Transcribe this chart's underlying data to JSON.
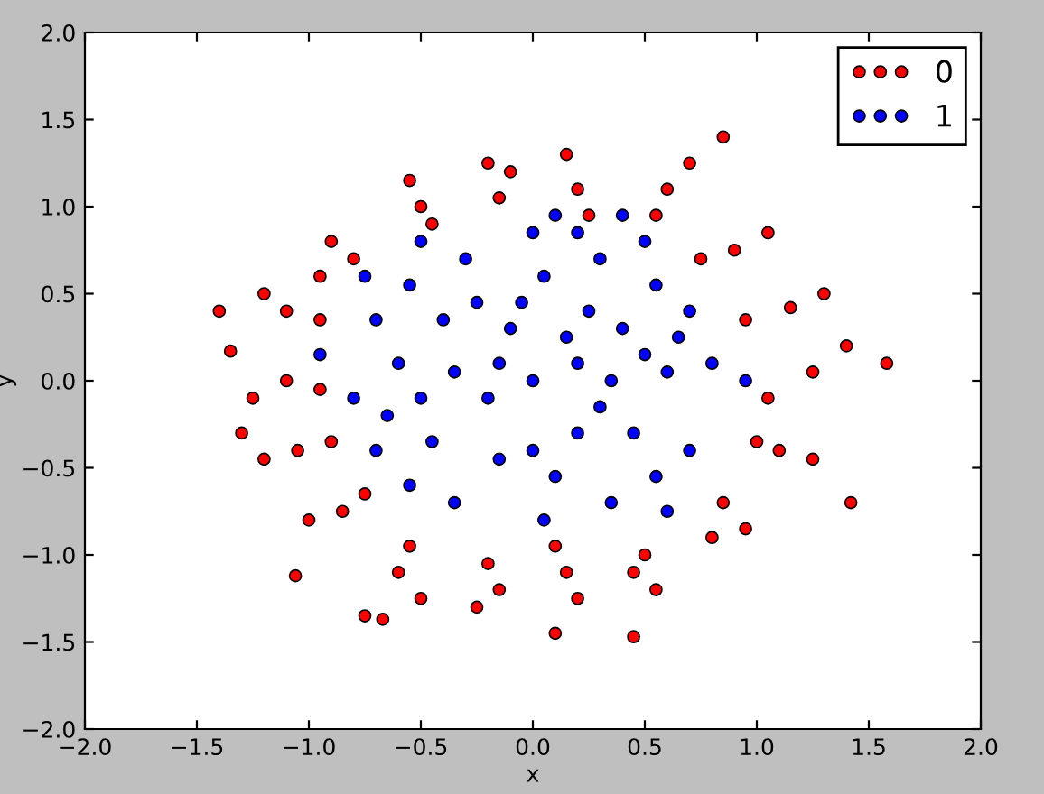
{
  "chart_data": {
    "type": "scatter",
    "xlabel": "x",
    "ylabel": "y",
    "xlim": [
      -2.0,
      2.0
    ],
    "ylim": [
      -2.0,
      2.0
    ],
    "xticks": [
      {
        "value": -2.0,
        "label": "−2.0"
      },
      {
        "value": -1.5,
        "label": "−1.5"
      },
      {
        "value": -1.0,
        "label": "−1.0"
      },
      {
        "value": -0.5,
        "label": "−0.5"
      },
      {
        "value": 0.0,
        "label": "0.0"
      },
      {
        "value": 0.5,
        "label": "0.5"
      },
      {
        "value": 1.0,
        "label": "1.0"
      },
      {
        "value": 1.5,
        "label": "1.5"
      },
      {
        "value": 2.0,
        "label": "2.0"
      }
    ],
    "yticks": [
      {
        "value": -2.0,
        "label": "−2.0"
      },
      {
        "value": -1.5,
        "label": "−1.5"
      },
      {
        "value": -1.0,
        "label": "−1.0"
      },
      {
        "value": -0.5,
        "label": "−0.5"
      },
      {
        "value": 0.0,
        "label": "0.0"
      },
      {
        "value": 0.5,
        "label": "0.5"
      },
      {
        "value": 1.0,
        "label": "1.0"
      },
      {
        "value": 1.5,
        "label": "1.5"
      },
      {
        "value": 2.0,
        "label": "2.0"
      }
    ],
    "grid": false,
    "legend": "top right",
    "marker": "circle",
    "series": [
      {
        "name": "0",
        "color": "#ff0000",
        "x": [
          1.25,
          1.05,
          1.4,
          1.15,
          0.95,
          1.3,
          0.9,
          1.05,
          0.75,
          0.55,
          0.6,
          0.7,
          0.2,
          0.15,
          0.25,
          -0.15,
          -0.2,
          -0.1,
          -0.5,
          -0.55,
          -0.45,
          -0.8,
          -0.9,
          -0.95,
          -1.1,
          -0.95,
          -1.2,
          -1.1,
          -1.25,
          -0.95,
          -1.3,
          -1.05,
          -1.2,
          -0.9,
          -0.85,
          -1.0,
          -0.75,
          -0.55,
          -0.6,
          -0.5,
          -0.2,
          -0.15,
          -0.25,
          0.15,
          0.2,
          0.1,
          0.5,
          0.55,
          0.45,
          0.85,
          0.95,
          0.8,
          1.1,
          1.25,
          1.0,
          -1.4,
          -1.35,
          1.58,
          0.85,
          -0.75,
          -0.67,
          0.1,
          1.42,
          -1.06,
          0.45
        ],
        "values": [
          0.05,
          -0.1,
          0.2,
          0.42,
          0.35,
          0.5,
          0.75,
          0.85,
          0.7,
          0.95,
          1.1,
          1.25,
          1.1,
          1.3,
          0.95,
          1.05,
          1.25,
          1.2,
          1.0,
          1.15,
          0.9,
          0.7,
          0.8,
          0.6,
          0.4,
          0.35,
          0.5,
          0.0,
          -0.1,
          -0.05,
          -0.3,
          -0.4,
          -0.45,
          -0.35,
          -0.75,
          -0.8,
          -0.65,
          -0.95,
          -1.1,
          -1.25,
          -1.05,
          -1.2,
          -1.3,
          -1.1,
          -1.25,
          -0.95,
          -1.0,
          -1.2,
          -1.1,
          -0.7,
          -0.85,
          -0.9,
          -0.4,
          -0.45,
          -0.35,
          0.4,
          0.17,
          0.1,
          1.4,
          -1.35,
          -1.37,
          -1.45,
          -0.7,
          -1.12,
          -1.47
        ]
      },
      {
        "name": "1",
        "color": "#0000ff",
        "x": [
          0.0,
          0.2,
          -0.2,
          0.4,
          -0.4,
          0.45,
          -0.45,
          0.6,
          -0.6,
          0.05,
          0.1,
          0.3,
          -0.3,
          0.35,
          -0.35,
          0.7,
          -0.7,
          0.7,
          -0.7,
          0.8,
          -0.8,
          0.0,
          0.05,
          0.25,
          -0.25,
          0.2,
          -0.15,
          0.55,
          -0.55,
          0.55,
          -0.55,
          0.15,
          -0.1,
          0.35,
          -0.35,
          0.65,
          -0.65,
          0.5,
          -0.5,
          0.1,
          0.2,
          -0.5,
          0.5,
          0.6,
          -0.75,
          -0.15,
          0.3,
          0.95,
          -0.95,
          0.4,
          0.0,
          -0.05
        ],
        "values": [
          0.0,
          0.1,
          -0.1,
          0.3,
          0.35,
          -0.3,
          -0.35,
          0.05,
          0.1,
          0.6,
          -0.55,
          0.7,
          0.7,
          -0.7,
          -0.7,
          0.4,
          0.35,
          -0.4,
          -0.4,
          0.1,
          -0.1,
          0.85,
          -0.8,
          0.4,
          0.45,
          -0.3,
          -0.45,
          0.55,
          0.55,
          -0.55,
          -0.6,
          0.25,
          0.3,
          0.0,
          0.05,
          0.25,
          -0.2,
          0.15,
          -0.1,
          0.95,
          0.85,
          0.8,
          0.8,
          -0.75,
          0.6,
          0.1,
          -0.15,
          0.0,
          0.15,
          0.95,
          -0.4,
          0.45
        ]
      }
    ]
  }
}
